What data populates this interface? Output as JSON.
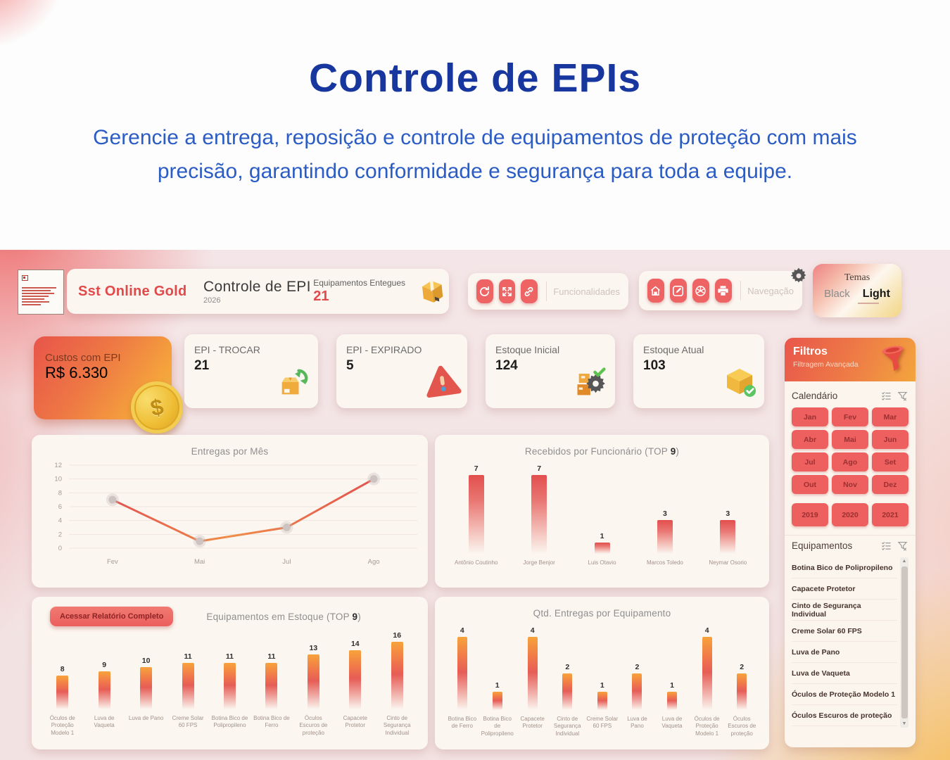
{
  "hero": {
    "title": "Controle de EPIs",
    "subtitle": "Gerencie a entrega, reposição e controle de equipamentos de proteção com mais precisão, garantindo conformidade e segurança para toda a equipe."
  },
  "topbar": {
    "brand": "Sst Online Gold",
    "report_title": "Controle de EPI",
    "report_year": "2026",
    "delivered_label": "Equipamentos Entegues",
    "delivered_value": "21",
    "funcionalidades_label": "Funcionalidades",
    "navegacao_label": "Navegação",
    "temas_title": "Temas",
    "theme_black": "Black",
    "theme_light": "Light"
  },
  "kpis": [
    {
      "label": "Custos com EPI",
      "value": "R$ 6.330"
    },
    {
      "label": "EPI - TROCAR",
      "value": "21"
    },
    {
      "label": "EPI - EXPIRADO",
      "value": "5"
    },
    {
      "label": "Estoque Inicial",
      "value": "124"
    },
    {
      "label": "Estoque Atual",
      "value": "103"
    }
  ],
  "buttons": {
    "full_report": "Acessar Relatório Completo"
  },
  "filters": {
    "title": "Filtros",
    "subtitle": "Filtragem Avançada",
    "calendar_title": "Calendário",
    "months": [
      "Jan",
      "Fev",
      "Mar",
      "Abr",
      "Mai",
      "Jun",
      "Jul",
      "Ago",
      "Set",
      "Out",
      "Nov",
      "Dez"
    ],
    "years": [
      "2019",
      "2020",
      "2021"
    ],
    "equipment_title": "Equipamentos",
    "equipment_items": [
      "Botina Bico de Polipropileno",
      "Capacete Protetor",
      "Cinto de Segurança Individual",
      "Creme Solar 60 FPS",
      "Luva de Pano",
      "Luva de Vaqueta",
      "Óculos de Proteção Modelo 1",
      "Óculos Escuros de proteção"
    ]
  },
  "chart_data": [
    {
      "type": "line",
      "title": "Entregas por Mês",
      "x": [
        "Fev",
        "Mai",
        "Jul",
        "Ago"
      ],
      "values": [
        7,
        1,
        3,
        10
      ],
      "ylim": [
        0,
        12
      ],
      "yticks": [
        0,
        2,
        4,
        6,
        8,
        10,
        12
      ],
      "grid": true,
      "line_colors": [
        "#e25350",
        "#ef8d49"
      ]
    },
    {
      "type": "bar",
      "title": "Recebidos por Funcionário (TOP 9)",
      "categories": [
        "Antônio Coutinho",
        "Jorge Benjor",
        "Luis Otavio",
        "Marcos Toledo",
        "Neymar Osorio"
      ],
      "values": [
        7,
        7,
        1,
        3,
        3
      ]
    },
    {
      "type": "bar",
      "title": "Equipamentos em Estoque (TOP 9)",
      "categories": [
        "Óculos de Proteção Modelo 1",
        "Luva de Vaqueta",
        "Luva de Pano",
        "Creme Solar 60 FPS",
        "Botina Bico de Polipropileno",
        "Botina Bico de Ferro",
        "Óculos Escuros de proteção",
        "Capacete Protetor",
        "Cinto de Segurança Individual"
      ],
      "values": [
        8,
        9,
        10,
        11,
        11,
        11,
        13,
        14,
        16
      ]
    },
    {
      "type": "bar",
      "title": "Qtd. Entregas por Equipamento",
      "categories": [
        "Botina Bico de Ferro",
        "Botina Bico de Polipropileno",
        "Capacete Protetor",
        "Cinto de Segurança Individual",
        "Creme Solar 60 FPS",
        "Luva de Pano",
        "Luva de Vaqueta",
        "Óculos de Proteção Modelo 1",
        "Óculos Escuros de proteção"
      ],
      "values": [
        4,
        1,
        4,
        2,
        1,
        2,
        1,
        4,
        2
      ]
    }
  ],
  "colors": {
    "title_blue": "#17379e",
    "subtitle_blue": "#2b5cc4",
    "accent_red": "#ee6464",
    "bar_orange": "#f7a33b",
    "bar_red": "#e24f4e"
  }
}
